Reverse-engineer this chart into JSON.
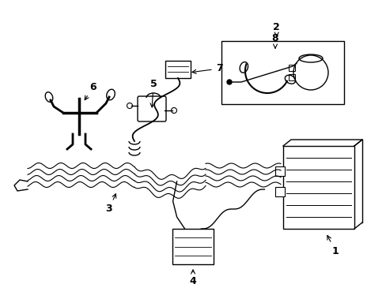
{
  "background_color": "#ffffff",
  "line_color": "#000000",
  "fig_width": 4.89,
  "fig_height": 3.6,
  "dpi": 100,
  "lw": 1.0
}
